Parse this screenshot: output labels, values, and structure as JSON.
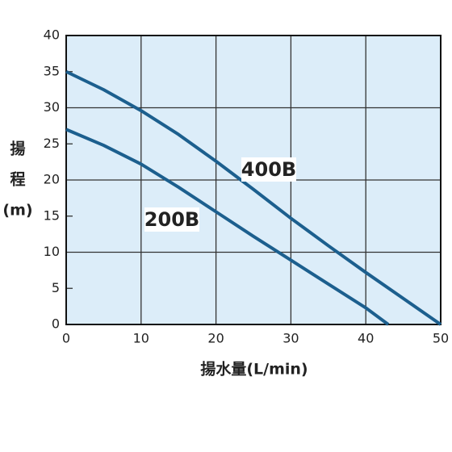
{
  "chart_data": {
    "type": "line",
    "xlabel": "揚水量(L/min)",
    "ylabel_lines": [
      "揚",
      "程",
      "(m)"
    ],
    "xlim": [
      0,
      50
    ],
    "xticks": [
      0,
      10,
      20,
      30,
      40,
      50
    ],
    "ylim": [
      0,
      40
    ],
    "yticks": [
      0,
      5,
      10,
      15,
      20,
      25,
      30,
      35,
      40
    ],
    "grid": true,
    "background": "#dcedf9",
    "series": [
      {
        "name": "400B",
        "color": "#1c5f8e",
        "x": [
          0,
          5,
          10,
          15,
          20,
          25,
          30,
          35,
          40,
          45,
          50
        ],
        "values": [
          35,
          32.5,
          29.6,
          26.3,
          22.6,
          18.7,
          14.7,
          10.9,
          7.2,
          3.6,
          0
        ]
      },
      {
        "name": "200B",
        "color": "#1c5f8e",
        "x": [
          0,
          5,
          10,
          15,
          20,
          25,
          30,
          35,
          40,
          43
        ],
        "values": [
          27,
          24.8,
          22.2,
          19,
          15.6,
          12.2,
          8.9,
          5.6,
          2.3,
          0
        ]
      }
    ]
  }
}
